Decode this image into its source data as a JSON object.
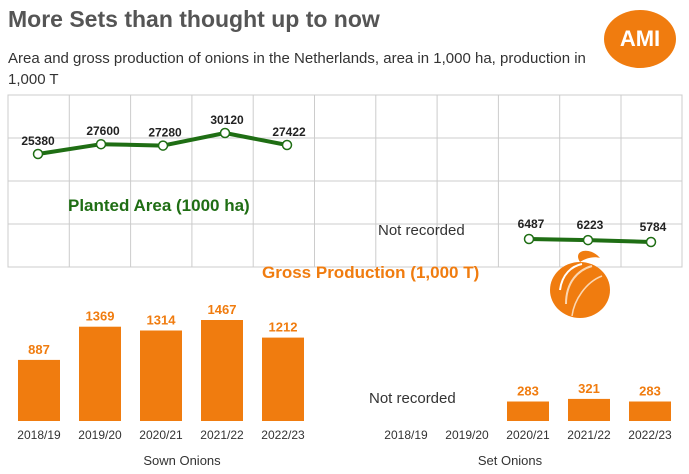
{
  "header": {
    "title": "More Sets than thought up to now",
    "subtitle": "Area and gross production of onions in the Netherlands, area in 1,000 ha, production in 1,000 T",
    "logo_text": "AMI"
  },
  "colors": {
    "green": "#1f6e14",
    "orange": "#f07c0f",
    "grid": "#cccccc"
  },
  "chart_data": [
    {
      "type": "line",
      "title": "",
      "series": [
        {
          "name": "Planted Area (1000 ha)",
          "x": [
            "2018/19",
            "2019/20",
            "2020/21",
            "2021/22",
            "2022/23"
          ],
          "values": [
            25380,
            27600,
            27280,
            30120,
            27422
          ]
        },
        {
          "name": "",
          "x": [
            "2020/21",
            "2021/22",
            "2022/23"
          ],
          "values": [
            6487,
            6223,
            5784
          ]
        }
      ],
      "series_labels": {
        "planted_area": "Planted Area (1000 ha)",
        "gross_production": "Gross Production (1,000 T)"
      },
      "annotation": "Not recorded",
      "grid": true
    },
    {
      "type": "bar",
      "xlabel": "Sown Onions",
      "categories": [
        "2018/19",
        "2019/20",
        "2020/21",
        "2021/22",
        "2022/23"
      ],
      "values": [
        887,
        1369,
        1314,
        1467,
        1212
      ]
    },
    {
      "type": "bar",
      "xlabel": "Set Onions",
      "categories": [
        "2018/19",
        "2019/20",
        "2020/21",
        "2021/22",
        "2022/23"
      ],
      "values": [
        null,
        null,
        283,
        321,
        283
      ],
      "annotation": "Not recorded"
    }
  ]
}
